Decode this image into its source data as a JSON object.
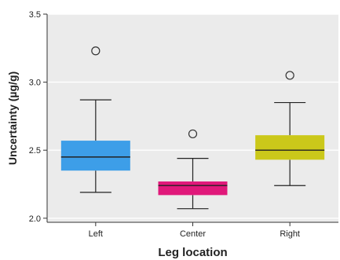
{
  "chart_data": {
    "type": "box",
    "xlabel": "Leg location",
    "ylabel": "Uncertainty (µg/g)",
    "ylim": [
      1.97,
      3.5
    ],
    "yticks": [
      {
        "value": 2.0,
        "label": "2.0"
      },
      {
        "value": 2.5,
        "label": "2.5"
      },
      {
        "value": 3.0,
        "label": "3.0"
      },
      {
        "value": 3.5,
        "label": "3.5"
      }
    ],
    "grid": true,
    "categories": [
      "Left",
      "Center",
      "Right"
    ],
    "boxes": [
      {
        "category": "Left",
        "whisker_low": 2.19,
        "q1": 2.35,
        "median": 2.45,
        "q3": 2.57,
        "whisker_high": 2.87,
        "outliers": [
          3.23
        ],
        "color": "#3d9ee8"
      },
      {
        "category": "Center",
        "whisker_low": 2.07,
        "q1": 2.17,
        "median": 2.24,
        "q3": 2.27,
        "whisker_high": 2.44,
        "outliers": [
          2.62
        ],
        "color": "#e0187a"
      },
      {
        "category": "Right",
        "whisker_low": 2.24,
        "q1": 2.43,
        "median": 2.5,
        "q3": 2.61,
        "whisker_high": 2.85,
        "outliers": [
          3.05
        ],
        "color": "#cbc81a"
      }
    ]
  }
}
